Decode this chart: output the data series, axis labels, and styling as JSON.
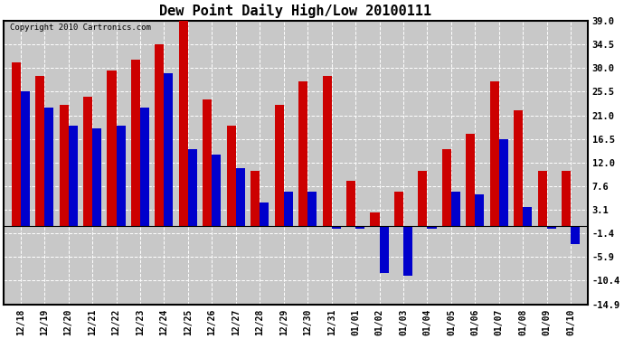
{
  "title": "Dew Point Daily High/Low 20100111",
  "copyright": "Copyright 2010 Cartronics.com",
  "dates": [
    "12/18",
    "12/19",
    "12/20",
    "12/21",
    "12/22",
    "12/23",
    "12/24",
    "12/25",
    "12/26",
    "12/27",
    "12/28",
    "12/29",
    "12/30",
    "12/31",
    "01/01",
    "01/02",
    "01/03",
    "01/04",
    "01/05",
    "01/06",
    "01/07",
    "01/08",
    "01/09",
    "01/10"
  ],
  "highs": [
    31.0,
    28.5,
    23.0,
    24.5,
    29.5,
    31.5,
    34.5,
    39.0,
    24.0,
    19.0,
    10.5,
    23.0,
    27.5,
    28.5,
    8.5,
    2.5,
    6.5,
    10.5,
    14.5,
    17.5,
    27.5,
    22.0,
    10.5,
    10.5
  ],
  "lows": [
    25.5,
    22.5,
    19.0,
    18.5,
    19.0,
    22.5,
    29.0,
    14.5,
    13.5,
    11.0,
    4.5,
    6.5,
    6.5,
    -0.5,
    -0.5,
    -9.0,
    -9.5,
    -0.5,
    6.5,
    6.0,
    16.5,
    3.5,
    -0.5,
    -3.5
  ],
  "high_color": "#cc0000",
  "low_color": "#0000cc",
  "fig_bg_color": "#ffffff",
  "plot_bg_color": "#c8c8c8",
  "grid_color": "#ffffff",
  "ytick_labels": [
    "39.0",
    "34.5",
    "30.0",
    "25.5",
    "21.0",
    "16.5",
    "12.0",
    "7.6",
    "3.1",
    "-1.4",
    "-5.9",
    "-10.4",
    "-14.9"
  ],
  "ytick_values": [
    39.0,
    34.5,
    30.0,
    25.5,
    21.0,
    16.5,
    12.0,
    7.6,
    3.1,
    -1.4,
    -5.9,
    -10.4,
    -14.9
  ],
  "ylim": [
    -14.9,
    39.0
  ],
  "bar_width": 0.38
}
